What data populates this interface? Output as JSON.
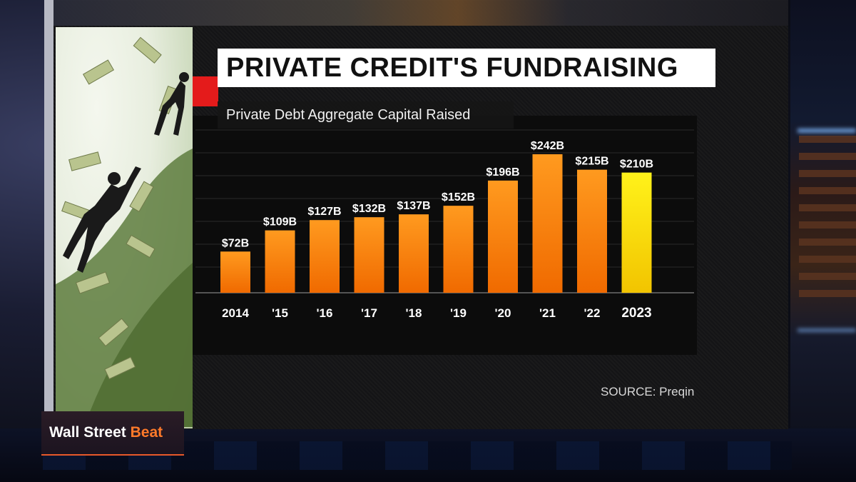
{
  "program": {
    "name_part1": "Wall Street ",
    "name_part2": "Beat"
  },
  "graphic": {
    "title": "PRIVATE CREDIT'S FUNDRAISING",
    "subtitle": "Private Debt Aggregate Capital Raised",
    "source": "SOURCE: Preqin"
  },
  "colors": {
    "accent_red": "#e41b1b",
    "bar_orange_top": "#ff9a1f",
    "bar_orange_bottom": "#f06a00",
    "bar_highlight_top": "#fff21a",
    "bar_highlight_bottom": "#f2c400",
    "logo_accent": "#ff7a2a"
  },
  "chart_data": {
    "type": "bar",
    "categories": [
      "2014",
      "'15",
      "'16",
      "'17",
      "'18",
      "'19",
      "'20",
      "'21",
      "'22",
      "2023"
    ],
    "values": [
      72,
      109,
      127,
      132,
      137,
      152,
      196,
      242,
      215,
      210
    ],
    "data_labels": [
      "$72B",
      "$109B",
      "$127B",
      "$132B",
      "$137B",
      "$152B",
      "$196B",
      "$242B",
      "$215B",
      "$210B"
    ],
    "highlight_index": 9,
    "title": "PRIVATE CREDIT'S FUNDRAISING",
    "subtitle": "Private Debt Aggregate Capital Raised",
    "xlabel": "",
    "ylabel": "",
    "unit": "$B",
    "ylim": [
      0,
      242
    ],
    "grid": true,
    "legend": "none"
  }
}
